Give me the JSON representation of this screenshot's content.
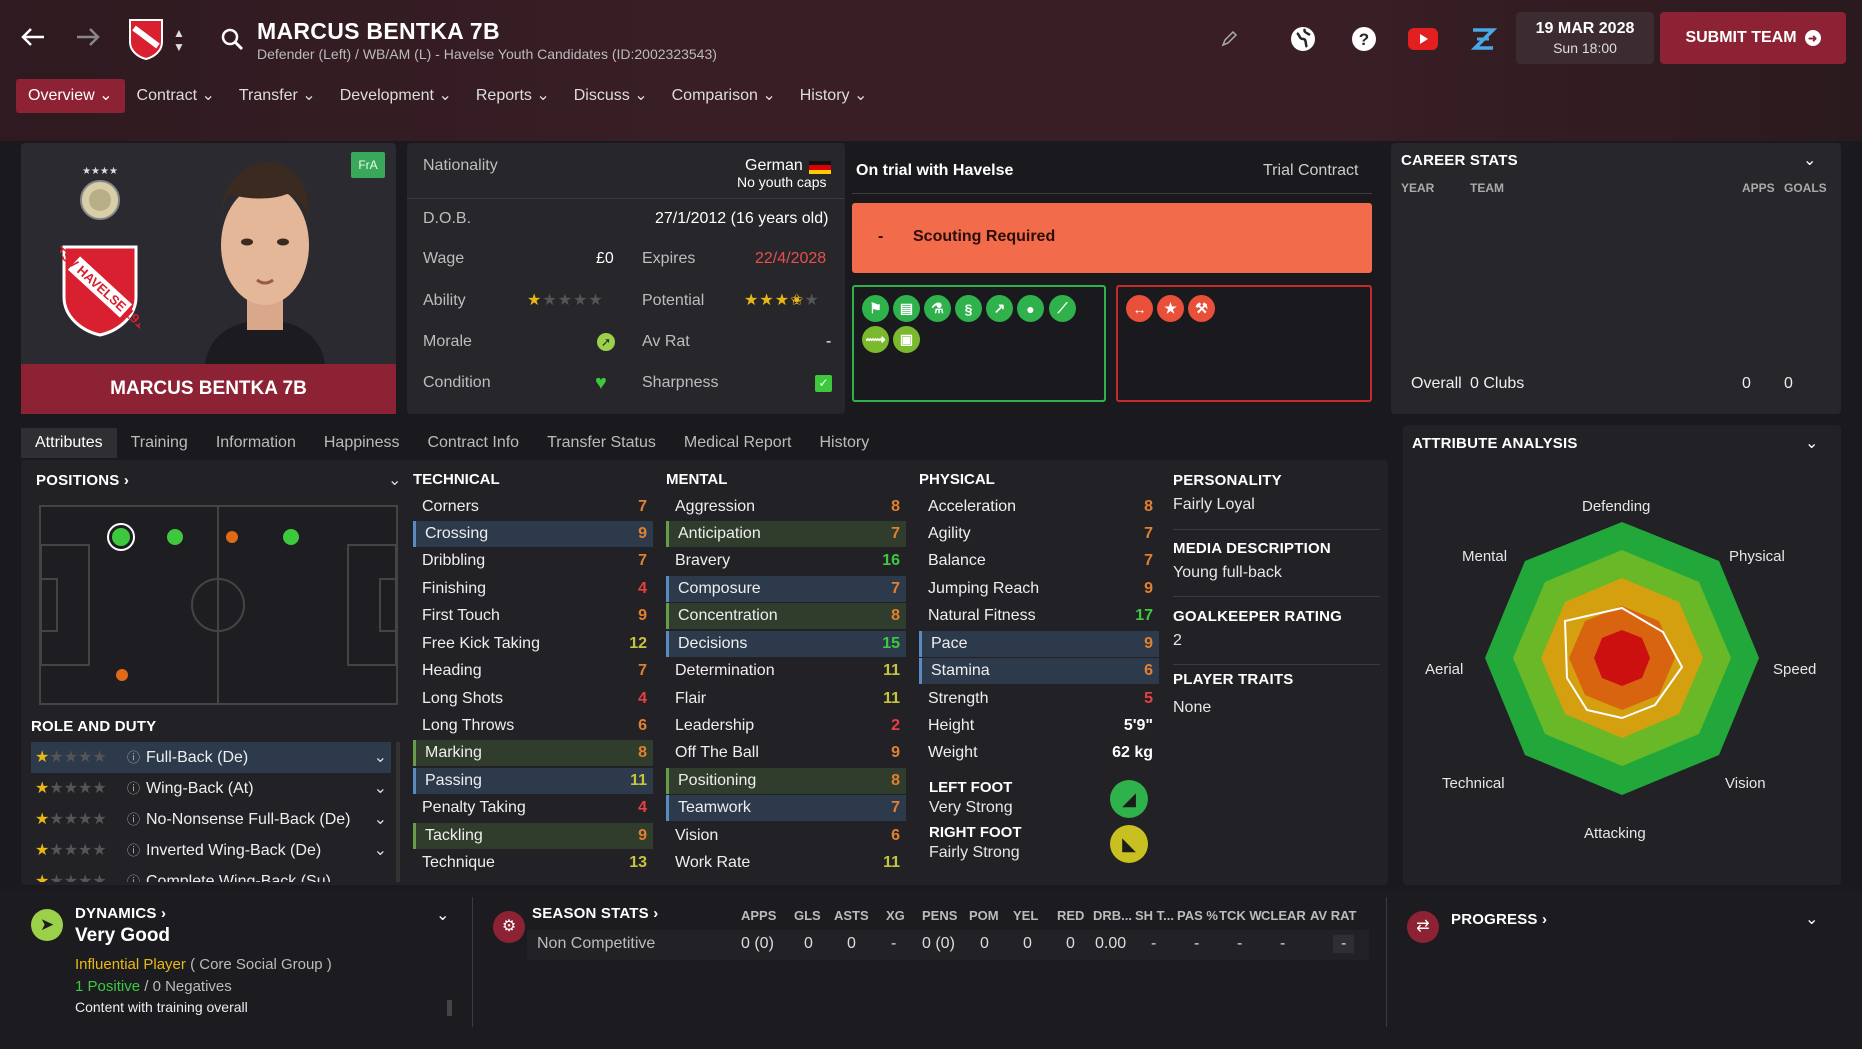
{
  "header": {
    "player_title": "MARCUS BENTKA 7B",
    "subtitle": "Defender (Left) / WB/AM (L) - Havelse Youth Candidates (ID:2002323543)",
    "date": "19 MAR 2028",
    "day_time": "Sun 18:00",
    "submit_label": "SUBMIT TEAM"
  },
  "menu": {
    "items": [
      "Overview",
      "Contract",
      "Transfer",
      "Development",
      "Reports",
      "Discuss",
      "Comparison",
      "History"
    ]
  },
  "profile": {
    "name": "MARCUS BENTKA 7B",
    "badge": "FrA",
    "club_crest_text": "TSV HAVELSE 1912"
  },
  "info": {
    "nationality_label": "Nationality",
    "nationality": "German",
    "youth_caps": "No youth caps",
    "dob_label": "D.O.B.",
    "dob": "27/1/2012 (16 years old)",
    "wage_label": "Wage",
    "wage": "£0",
    "expires_label": "Expires",
    "expires": "22/4/2028",
    "ability_label": "Ability",
    "ability_stars": 1,
    "potential_label": "Potential",
    "potential_stars": 3.5,
    "morale_label": "Morale",
    "avrat_label": "Av Rat",
    "avrat": "-",
    "condition_label": "Condition",
    "sharpness_label": "Sharpness"
  },
  "trial": {
    "status": "On trial with Havelse",
    "contract": "Trial Contract",
    "scout_dash": "-",
    "scout_text": "Scouting Required"
  },
  "career": {
    "title": "CAREER STATS",
    "col_year": "YEAR",
    "col_team": "TEAM",
    "col_apps": "APPS",
    "col_goals": "GOALS",
    "overall_label": "Overall",
    "overall_clubs": "0 Clubs",
    "overall_apps": "0",
    "overall_goals": "0"
  },
  "tabs": [
    "Attributes",
    "Training",
    "Information",
    "Happiness",
    "Contract Info",
    "Transfer Status",
    "Medical Report",
    "History"
  ],
  "positions": {
    "title": "POSITIONS",
    "role_title": "ROLE AND DUTY",
    "roles": [
      {
        "name": "Full-Back (De)"
      },
      {
        "name": "Wing-Back (At)"
      },
      {
        "name": "No-Nonsense Full-Back (De)"
      },
      {
        "name": "Inverted Wing-Back (De)"
      },
      {
        "name": "Complete Wing-Back (Su)"
      }
    ]
  },
  "technical": {
    "title": "TECHNICAL",
    "rows": [
      {
        "name": "Corners",
        "value": "7"
      },
      {
        "name": "Crossing",
        "value": "9"
      },
      {
        "name": "Dribbling",
        "value": "7"
      },
      {
        "name": "Finishing",
        "value": "4"
      },
      {
        "name": "First Touch",
        "value": "9"
      },
      {
        "name": "Free Kick Taking",
        "value": "12"
      },
      {
        "name": "Heading",
        "value": "7"
      },
      {
        "name": "Long Shots",
        "value": "4"
      },
      {
        "name": "Long Throws",
        "value": "6"
      },
      {
        "name": "Marking",
        "value": "8"
      },
      {
        "name": "Passing",
        "value": "11"
      },
      {
        "name": "Penalty Taking",
        "value": "4"
      },
      {
        "name": "Tackling",
        "value": "9"
      },
      {
        "name": "Technique",
        "value": "13"
      }
    ]
  },
  "mental": {
    "title": "MENTAL",
    "rows": [
      {
        "name": "Aggression",
        "value": "8"
      },
      {
        "name": "Anticipation",
        "value": "7"
      },
      {
        "name": "Bravery",
        "value": "16"
      },
      {
        "name": "Composure",
        "value": "7"
      },
      {
        "name": "Concentration",
        "value": "8"
      },
      {
        "name": "Decisions",
        "value": "15"
      },
      {
        "name": "Determination",
        "value": "11"
      },
      {
        "name": "Flair",
        "value": "11"
      },
      {
        "name": "Leadership",
        "value": "2"
      },
      {
        "name": "Off The Ball",
        "value": "9"
      },
      {
        "name": "Positioning",
        "value": "8"
      },
      {
        "name": "Teamwork",
        "value": "7"
      },
      {
        "name": "Vision",
        "value": "6"
      },
      {
        "name": "Work Rate",
        "value": "11"
      }
    ]
  },
  "physical": {
    "title": "PHYSICAL",
    "rows": [
      {
        "name": "Acceleration",
        "value": "8"
      },
      {
        "name": "Agility",
        "value": "7"
      },
      {
        "name": "Balance",
        "value": "7"
      },
      {
        "name": "Jumping Reach",
        "value": "9"
      },
      {
        "name": "Natural Fitness",
        "value": "17"
      },
      {
        "name": "Pace",
        "value": "9"
      },
      {
        "name": "Stamina",
        "value": "6"
      },
      {
        "name": "Strength",
        "value": "5"
      },
      {
        "name": "Height",
        "value": "5'9\""
      },
      {
        "name": "Weight",
        "value": "62 kg"
      }
    ],
    "left_foot_label": "LEFT FOOT",
    "left_foot": "Very Strong",
    "right_foot_label": "RIGHT FOOT",
    "right_foot": "Fairly Strong"
  },
  "personality": {
    "title": "PERSONALITY",
    "value": "Fairly Loyal",
    "media_title": "MEDIA DESCRIPTION",
    "media": "Young full-back",
    "gk_title": "GOALKEEPER RATING",
    "gk": "2",
    "traits_title": "PLAYER TRAITS",
    "traits": "None"
  },
  "analysis": {
    "title": "ATTRIBUTE ANALYSIS",
    "labels": [
      "Defending",
      "Physical",
      "Speed",
      "Vision",
      "Attacking",
      "Technical",
      "Aerial",
      "Mental"
    ]
  },
  "dynamics": {
    "title": "DYNAMICS",
    "rating": "Very Good",
    "influence": "Influential Player",
    "group": "( Core Social Group )",
    "positives": "1 Positive",
    "slash": "/",
    "negatives": "0 Negatives",
    "training": "Content with training overall"
  },
  "season": {
    "title": "SEASON STATS",
    "headers": [
      "APPS",
      "GLS",
      "ASTS",
      "XG",
      "PENS",
      "POM",
      "YEL",
      "RED",
      "DRB...",
      "SH T...",
      "PAS %",
      "TCK W",
      "CLEAR",
      "AV RAT"
    ],
    "row_label": "Non Competitive",
    "values": [
      "0 (0)",
      "0",
      "0",
      "-",
      "0 (0)",
      "0",
      "0",
      "0",
      "0.00",
      "-",
      "-",
      "-",
      "-",
      "-"
    ]
  },
  "progress": {
    "title": "PROGRESS"
  },
  "colors": {
    "accent": "#8c2233",
    "scout": "#f26b4b",
    "green": "#2fb24c",
    "red": "#c62a2a"
  }
}
